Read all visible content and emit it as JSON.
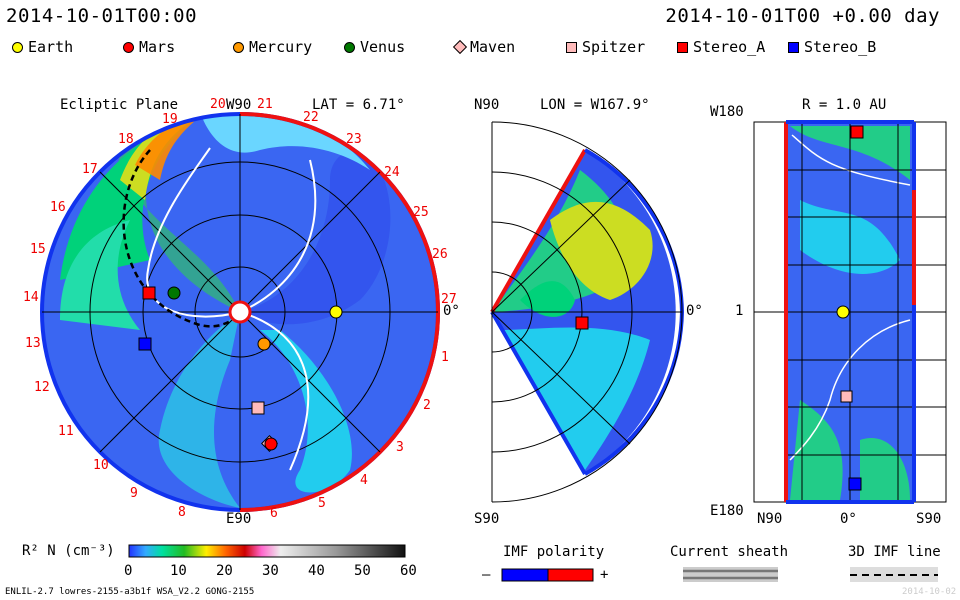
{
  "header": {
    "date_left": "2014-10-01T00:00",
    "date_right": "2014-10-01T00 +0.00 day"
  },
  "legend": [
    {
      "label": "Earth",
      "color": "#ffff00",
      "shape": "circle"
    },
    {
      "label": "Mars",
      "color": "#ff0000",
      "shape": "circle"
    },
    {
      "label": "Mercury",
      "color": "#ff9900",
      "shape": "circle"
    },
    {
      "label": "Venus",
      "color": "#007700",
      "shape": "circle"
    },
    {
      "label": "Maven",
      "color": "#ffbbbb",
      "shape": "diamond"
    },
    {
      "label": "Spitzer",
      "color": "#ffbbbb",
      "shape": "square"
    },
    {
      "label": "Stereo_A",
      "color": "#ff0000",
      "shape": "square"
    },
    {
      "label": "Stereo_B",
      "color": "#0000ff",
      "shape": "square"
    }
  ],
  "ecliptic": {
    "title": "Ecliptic Plane",
    "lat": "LAT = 6.71°",
    "top_label": "W90",
    "bottom_label": "E90",
    "right_label": "0°",
    "day_numbers": [
      "20",
      "21",
      "22",
      "23",
      "24",
      "25",
      "26",
      "27",
      "1",
      "2",
      "3",
      "4",
      "5",
      "6",
      "8",
      "9",
      "10",
      "11",
      "12",
      "13",
      "14",
      "15",
      "16",
      "17",
      "18",
      "19"
    ]
  },
  "meridional": {
    "title": "LON = W167.9°",
    "top": "N90",
    "bottom": "S90",
    "right": "0°"
  },
  "radial": {
    "title": "R = 1.0 AU",
    "top_left": "W180",
    "mid_left": "1",
    "bottom_left": "E180",
    "axis_left": "N90",
    "axis_mid": "0°",
    "axis_right": "S90"
  },
  "colorbar": {
    "label": "R² N (cm⁻³)",
    "ticks": [
      "0",
      "10",
      "20",
      "30",
      "40",
      "50",
      "60"
    ]
  },
  "imf": {
    "label": "IMF polarity",
    "minus": "–",
    "plus": "+"
  },
  "sheath": {
    "label": "Current sheath"
  },
  "imf3d": {
    "label": "3D IMF line"
  },
  "footer": {
    "left": "ENLIL-2.7 lowres-2155-a3b1f WSA_V2.2 GONG-2155",
    "right": "2014-10-02"
  }
}
